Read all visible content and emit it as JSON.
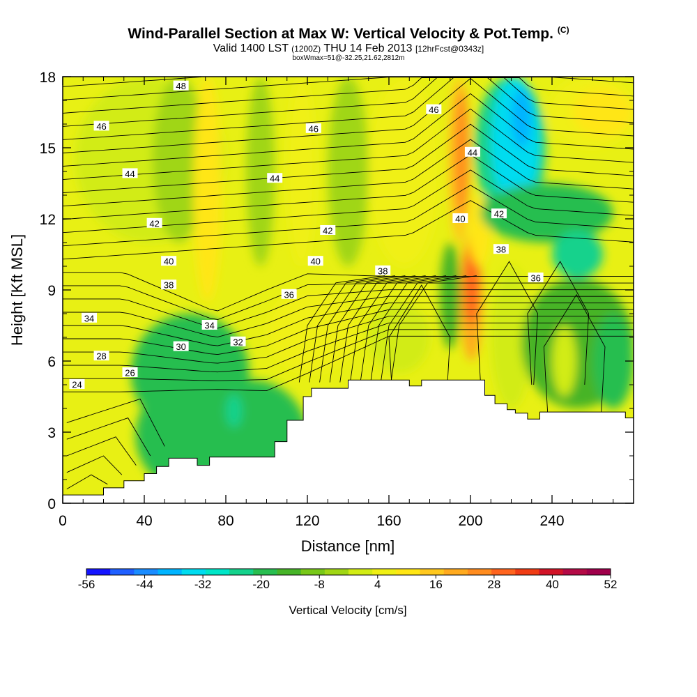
{
  "header": {
    "title": "Wind-Parallel Section at Max W: Vertical Velocity & Pot.Temp.",
    "copyright": "(C)",
    "valid_prefix": "Valid 1400 LST",
    "valid_utc": "(1200Z)",
    "valid_date": "THU 14 Feb 2013",
    "forecast": "[12hrFcst@0343z]",
    "box_info": "boxWmax=51@-32.25,21.62,2812m"
  },
  "chart_data": {
    "type": "heatmap",
    "xlabel": "Distance [nm]",
    "ylabel": "Height [Kft MSL]",
    "xlim": [
      0,
      280
    ],
    "ylim": [
      0,
      18
    ],
    "xticks": [
      "0",
      "40",
      "80",
      "120",
      "160",
      "200",
      "240"
    ],
    "yticks": [
      "0",
      "3",
      "6",
      "9",
      "12",
      "15",
      "18"
    ],
    "colorbar": {
      "label": "Vertical Velocity [cm/s]",
      "ticks": [
        "-56",
        "-44",
        "-32",
        "-20",
        "-8",
        "4",
        "16",
        "28",
        "40",
        "52"
      ],
      "min": -56,
      "max": 52,
      "step": 6,
      "colors": [
        "#1414ff",
        "#1f5fff",
        "#1a8cff",
        "#00b4ff",
        "#00dcf0",
        "#00e6c8",
        "#14d28c",
        "#28be50",
        "#46b428",
        "#78c818",
        "#a0d614",
        "#d2ec14",
        "#f0f014",
        "#ffe614",
        "#ffc81e",
        "#ffaa1e",
        "#ff8c1e",
        "#ff641e",
        "#f03c14",
        "#d21428",
        "#b40a46",
        "#a0004b"
      ]
    },
    "terrain_profile": {
      "x": [
        0,
        20,
        20,
        30,
        30,
        40,
        40,
        46,
        46,
        52,
        52,
        66,
        66,
        72,
        72,
        104,
        104,
        110,
        110,
        118,
        118,
        122,
        122,
        140,
        140,
        170,
        170,
        176,
        176,
        182,
        182,
        207,
        207,
        212,
        212,
        218,
        218,
        222,
        222,
        228,
        228,
        234,
        234,
        260,
        260,
        276,
        276,
        280
      ],
      "y": [
        0.35,
        0.35,
        0.65,
        0.65,
        0.95,
        0.95,
        1.25,
        1.25,
        1.55,
        1.55,
        1.9,
        1.9,
        1.6,
        1.6,
        1.95,
        1.95,
        2.6,
        2.6,
        3.5,
        3.5,
        4.5,
        4.5,
        4.85,
        4.85,
        5.2,
        5.2,
        4.95,
        4.95,
        5.2,
        5.2,
        5.2,
        5.2,
        4.55,
        4.55,
        4.2,
        4.2,
        3.95,
        3.95,
        3.8,
        3.8,
        3.55,
        3.55,
        3.85,
        3.85,
        3.85,
        3.85,
        3.6,
        3.6
      ]
    },
    "theta_labels": [
      {
        "text": "48",
        "x": 58,
        "y": 17.6
      },
      {
        "text": "46",
        "x": 19,
        "y": 15.9
      },
      {
        "text": "46",
        "x": 123,
        "y": 15.8
      },
      {
        "text": "46",
        "x": 182,
        "y": 16.6
      },
      {
        "text": "44",
        "x": 33,
        "y": 13.9
      },
      {
        "text": "44",
        "x": 104,
        "y": 13.7
      },
      {
        "text": "44",
        "x": 201,
        "y": 14.8
      },
      {
        "text": "42",
        "x": 45,
        "y": 11.8
      },
      {
        "text": "42",
        "x": 130,
        "y": 11.5
      },
      {
        "text": "42",
        "x": 214,
        "y": 12.2
      },
      {
        "text": "40",
        "x": 52,
        "y": 10.2
      },
      {
        "text": "40",
        "x": 124,
        "y": 10.2
      },
      {
        "text": "40",
        "x": 195,
        "y": 12.0
      },
      {
        "text": "38",
        "x": 52,
        "y": 9.2
      },
      {
        "text": "38",
        "x": 157,
        "y": 9.8
      },
      {
        "text": "38",
        "x": 215,
        "y": 10.7
      },
      {
        "text": "36",
        "x": 111,
        "y": 8.8
      },
      {
        "text": "36",
        "x": 232,
        "y": 9.5
      },
      {
        "text": "34",
        "x": 13,
        "y": 7.8
      },
      {
        "text": "34",
        "x": 72,
        "y": 7.5
      },
      {
        "text": "32",
        "x": 86,
        "y": 6.8
      },
      {
        "text": "30",
        "x": 58,
        "y": 6.6
      },
      {
        "text": "28",
        "x": 19,
        "y": 6.2
      },
      {
        "text": "26",
        "x": 33,
        "y": 5.5
      },
      {
        "text": "24",
        "x": 7,
        "y": 5.0
      }
    ]
  }
}
